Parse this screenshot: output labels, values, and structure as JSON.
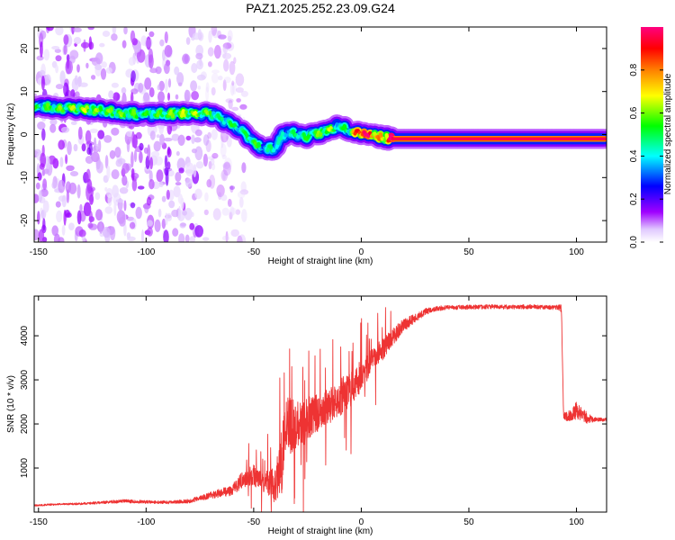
{
  "title": "PAZ1.2025.252.23.09.G24",
  "chart_data": [
    {
      "type": "heatmap",
      "name": "spectrogram",
      "xlabel": "Height of straight line (km)",
      "ylabel": "Frequency (Hz)",
      "xlim": [
        -152,
        114
      ],
      "ylim": [
        -25,
        25
      ],
      "xticks": [
        -150,
        -100,
        -50,
        0,
        50,
        100
      ],
      "yticks": [
        -20,
        -10,
        0,
        10,
        20
      ],
      "colorbar": {
        "label": "Normalized spectral amplitude",
        "range": [
          0,
          1
        ],
        "ticks": [
          "0.0",
          "0.2",
          "0.4",
          "0.6",
          "0.8"
        ],
        "tick_values": [
          0,
          0.2,
          0.4,
          0.6,
          0.8
        ],
        "colors": [
          "#ffffff",
          "#a000ff",
          "#0000ff",
          "#00ffff",
          "#00ff00",
          "#ffff00",
          "#ff8000",
          "#ff0000",
          "#ff0080"
        ]
      },
      "ridge": {
        "description": "dominant frequency (Hz) vs height (km)",
        "x": [
          -150,
          -140,
          -130,
          -120,
          -110,
          -100,
          -90,
          -80,
          -70,
          -66,
          -60,
          -55,
          -50,
          -45,
          -40,
          -37,
          -33,
          -25,
          -20,
          -15,
          -10,
          -5,
          0,
          10,
          14,
          30,
          60,
          90,
          100,
          105,
          114
        ],
        "y": [
          6.5,
          6.2,
          6.0,
          5.5,
          5.0,
          4.6,
          4.8,
          5.0,
          4.8,
          4.0,
          2.0,
          0.5,
          -1.5,
          -3.5,
          -3.0,
          -0.5,
          0.5,
          -0.5,
          0.3,
          1.0,
          2.2,
          1.0,
          0.5,
          -0.6,
          -1.0,
          -1.0,
          -1.0,
          -1.0,
          -1.0,
          -1.0,
          -1.0
        ],
        "peak_amplitude": [
          0.45,
          0.5,
          0.55,
          0.5,
          0.5,
          0.45,
          0.5,
          0.55,
          0.5,
          0.4,
          0.45,
          0.4,
          0.5,
          0.35,
          0.45,
          0.35,
          0.4,
          0.45,
          0.5,
          0.55,
          0.4,
          0.5,
          0.95,
          0.6,
          1.0,
          1.0,
          1.0,
          1.0,
          1.0,
          1.0,
          1.0
        ]
      },
      "noise_region_km": [
        -152,
        -72
      ]
    },
    {
      "type": "line",
      "name": "snr",
      "xlabel": "Height of straight line (km)",
      "ylabel": "SNR (10 * v/v)",
      "xlim": [
        -152,
        114
      ],
      "ylim": [
        0,
        4900
      ],
      "xticks": [
        -150,
        -100,
        -50,
        0,
        50,
        100
      ],
      "yticks": [
        1000,
        2000,
        3000,
        4000
      ],
      "color": "#ee3333",
      "series": [
        {
          "name": "SNR",
          "x": [
            -152,
            -140,
            -130,
            -120,
            -110,
            -100,
            -90,
            -80,
            -70,
            -60,
            -55,
            -50,
            -45,
            -40,
            -37,
            -35,
            -30,
            -25,
            -20,
            -15,
            -10,
            -5,
            0,
            5,
            10,
            15,
            20,
            25,
            30,
            35,
            40,
            50,
            60,
            70,
            80,
            90,
            92,
            93,
            94,
            96,
            100,
            104,
            108,
            114
          ],
          "values": [
            150,
            180,
            190,
            220,
            250,
            230,
            220,
            250,
            380,
            500,
            750,
            850,
            700,
            600,
            1100,
            2000,
            1900,
            2100,
            2250,
            2400,
            2600,
            2800,
            3100,
            3400,
            3700,
            4000,
            4250,
            4400,
            4550,
            4620,
            4640,
            4650,
            4660,
            4650,
            4660,
            4640,
            4650,
            4600,
            2200,
            2150,
            2300,
            2150,
            2100,
            2100
          ],
          "noise_amplitude": [
            40,
            40,
            50,
            60,
            80,
            70,
            70,
            90,
            150,
            250,
            400,
            500,
            500,
            800,
            1500,
            1300,
            1200,
            1000,
            900,
            800,
            850,
            800,
            700,
            600,
            500,
            400,
            300,
            200,
            150,
            120,
            100,
            100,
            100,
            100,
            100,
            100,
            150,
            200,
            150,
            250,
            400,
            300,
            100,
            80
          ]
        }
      ]
    }
  ]
}
